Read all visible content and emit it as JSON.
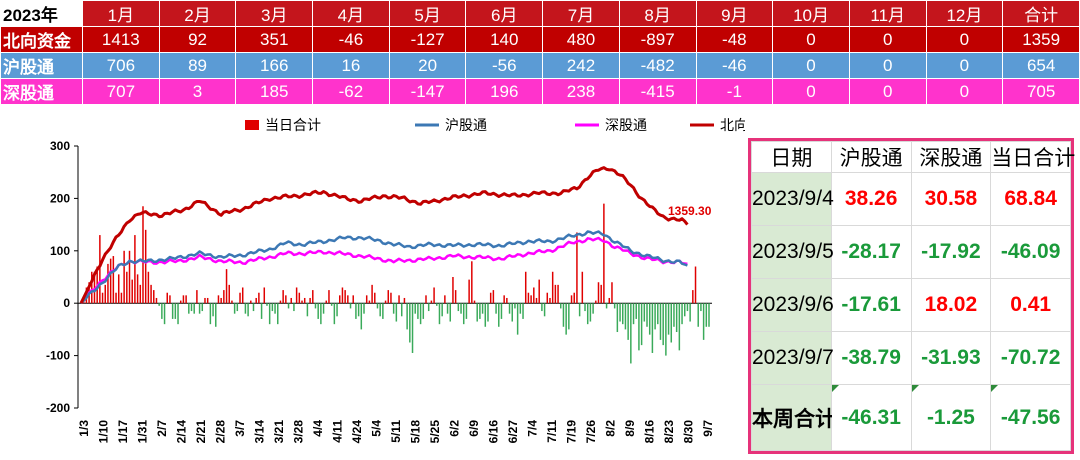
{
  "monthly_table": {
    "year_label": "2023年",
    "months": [
      "1月",
      "2月",
      "3月",
      "4月",
      "5月",
      "6月",
      "7月",
      "8月",
      "9月",
      "10月",
      "11月",
      "12月",
      "合计"
    ],
    "rows": [
      {
        "label": "北向资金",
        "class": "row-north",
        "values": [
          "1413",
          "92",
          "351",
          "-46",
          "-127",
          "140",
          "480",
          "-897",
          "-48",
          "0",
          "0",
          "0",
          "1359"
        ]
      },
      {
        "label": "沪股通",
        "class": "row-sh",
        "values": [
          "706",
          "89",
          "166",
          "16",
          "20",
          "-56",
          "242",
          "-482",
          "-46",
          "0",
          "0",
          "0",
          "654"
        ]
      },
      {
        "label": "深股通",
        "class": "row-sz",
        "values": [
          "707",
          "3",
          "185",
          "-62",
          "-147",
          "196",
          "238",
          "-415",
          "-1",
          "0",
          "0",
          "0",
          "705"
        ]
      }
    ]
  },
  "colors": {
    "north": "#c00000",
    "sh": "#3c78b4",
    "sz": "#ff00ff",
    "bar_pos": "#e00000",
    "bar_neg": "#3aaa5a",
    "positive_text": "#ff0000",
    "negative_text": "#1a9a3a"
  },
  "chart_data": {
    "type": "bar+line",
    "legend": [
      "当日合计",
      "沪股通",
      "深股通",
      "北向资金"
    ],
    "legend_placement": "top",
    "ylim": [
      -200,
      300
    ],
    "yticks": [
      "300",
      "200",
      "100",
      "0",
      "-100",
      "-200"
    ],
    "x_tick_labels": [
      "1/3",
      "1/10",
      "1/17",
      "1/31",
      "2/7",
      "2/14",
      "2/21",
      "2/28",
      "3/7",
      "3/14",
      "3/21",
      "3/28",
      "4/4",
      "4/11",
      "4/24",
      "5/4",
      "5/11",
      "5/18",
      "5/25",
      "6/2",
      "6/9",
      "6/16",
      "6/27",
      "7/4",
      "7/11",
      "7/19",
      "7/26",
      "8/2",
      "8/9",
      "8/16",
      "8/23",
      "8/30",
      "9/7"
    ],
    "annotation": "1359.30",
    "series": [
      {
        "name": "北向资金",
        "key": "north",
        "anchors": [
          [
            0,
            0
          ],
          [
            8,
            85
          ],
          [
            14,
            130
          ],
          [
            18,
            160
          ],
          [
            22,
            172
          ],
          [
            30,
            168
          ],
          [
            38,
            178
          ],
          [
            44,
            195
          ],
          [
            52,
            170
          ],
          [
            60,
            180
          ],
          [
            70,
            200
          ],
          [
            80,
            205
          ],
          [
            90,
            212
          ],
          [
            98,
            200
          ],
          [
            104,
            195
          ],
          [
            112,
            205
          ],
          [
            120,
            200
          ],
          [
            126,
            190
          ],
          [
            134,
            198
          ],
          [
            142,
            205
          ],
          [
            150,
            210
          ],
          [
            160,
            205
          ],
          [
            170,
            210
          ],
          [
            178,
            210
          ],
          [
            184,
            220
          ],
          [
            188,
            240
          ],
          [
            192,
            255
          ],
          [
            196,
            258
          ],
          [
            200,
            245
          ],
          [
            204,
            225
          ],
          [
            208,
            200
          ],
          [
            212,
            180
          ],
          [
            216,
            165
          ],
          [
            220,
            160
          ],
          [
            223,
            158
          ],
          [
            225,
            150
          ]
        ]
      },
      {
        "name": "沪股通",
        "key": "sh",
        "anchors": [
          [
            0,
            0
          ],
          [
            8,
            40
          ],
          [
            14,
            70
          ],
          [
            18,
            80
          ],
          [
            24,
            80
          ],
          [
            34,
            85
          ],
          [
            44,
            95
          ],
          [
            52,
            88
          ],
          [
            60,
            92
          ],
          [
            70,
            103
          ],
          [
            76,
            115
          ],
          [
            82,
            112
          ],
          [
            90,
            118
          ],
          [
            98,
            125
          ],
          [
            104,
            125
          ],
          [
            110,
            120
          ],
          [
            116,
            112
          ],
          [
            122,
            108
          ],
          [
            130,
            112
          ],
          [
            138,
            110
          ],
          [
            146,
            112
          ],
          [
            156,
            110
          ],
          [
            166,
            118
          ],
          [
            174,
            118
          ],
          [
            182,
            128
          ],
          [
            188,
            135
          ],
          [
            194,
            132
          ],
          [
            198,
            118
          ],
          [
            204,
            100
          ],
          [
            210,
            90
          ],
          [
            216,
            82
          ],
          [
            222,
            78
          ],
          [
            225,
            72
          ]
        ]
      },
      {
        "name": "深股通",
        "key": "sz",
        "anchors": [
          [
            0,
            0
          ],
          [
            8,
            45
          ],
          [
            14,
            70
          ],
          [
            18,
            80
          ],
          [
            26,
            78
          ],
          [
            36,
            80
          ],
          [
            44,
            88
          ],
          [
            52,
            80
          ],
          [
            60,
            78
          ],
          [
            70,
            88
          ],
          [
            76,
            95
          ],
          [
            84,
            95
          ],
          [
            90,
            98
          ],
          [
            96,
            95
          ],
          [
            104,
            90
          ],
          [
            110,
            85
          ],
          [
            116,
            80
          ],
          [
            122,
            82
          ],
          [
            130,
            85
          ],
          [
            138,
            90
          ],
          [
            146,
            88
          ],
          [
            156,
            85
          ],
          [
            166,
            95
          ],
          [
            174,
            100
          ],
          [
            182,
            115
          ],
          [
            188,
            122
          ],
          [
            194,
            120
          ],
          [
            198,
            108
          ],
          [
            204,
            95
          ],
          [
            210,
            85
          ],
          [
            216,
            80
          ],
          [
            222,
            78
          ],
          [
            225,
            75
          ]
        ]
      }
    ],
    "daily_bars": [
      0,
      5,
      30,
      40,
      60,
      60,
      70,
      130,
      20,
      35,
      75,
      85,
      90,
      20,
      55,
      20,
      100,
      60,
      100,
      45,
      130,
      55,
      35,
      185,
      140,
      60,
      35,
      25,
      10,
      -5,
      -30,
      -40,
      20,
      15,
      -30,
      -30,
      -40,
      5,
      15,
      15,
      -20,
      -15,
      -20,
      25,
      -20,
      -15,
      10,
      10,
      -40,
      -25,
      -45,
      15,
      10,
      25,
      65,
      35,
      5,
      -20,
      -15,
      20,
      30,
      -20,
      -25,
      5,
      -15,
      10,
      20,
      -30,
      30,
      -5,
      -40,
      -15,
      -20,
      -40,
      5,
      25,
      15,
      -10,
      10,
      -15,
      30,
      20,
      5,
      10,
      -25,
      10,
      25,
      -10,
      -30,
      -40,
      -20,
      5,
      25,
      -5,
      -40,
      -25,
      15,
      30,
      25,
      15,
      -10,
      15,
      -30,
      -25,
      -50,
      -20,
      15,
      5,
      35,
      20,
      -10,
      -25,
      -30,
      5,
      25,
      20,
      -20,
      -35,
      15,
      -25,
      10,
      -50,
      -75,
      -95,
      -20,
      -30,
      -40,
      -30,
      15,
      -15,
      5,
      30,
      -5,
      -40,
      -25,
      15,
      -20,
      -35,
      50,
      25,
      -15,
      -20,
      -40,
      -30,
      45,
      80,
      5,
      -35,
      -30,
      -20,
      -45,
      -35,
      20,
      25,
      -20,
      -45,
      -30,
      15,
      10,
      -20,
      -35,
      -10,
      -60,
      -20,
      -30,
      60,
      20,
      15,
      30,
      10,
      45,
      -15,
      -25,
      20,
      10,
      60,
      35,
      35,
      -10,
      -45,
      -60,
      -50,
      15,
      20,
      135,
      -25,
      60,
      -15,
      -40,
      -35,
      -20,
      5,
      40,
      35,
      190,
      -10,
      10,
      40,
      -10,
      -55,
      -35,
      -40,
      -50,
      -70,
      -115,
      -40,
      -30,
      -90,
      -80,
      -35,
      -45,
      -60,
      -95,
      -50,
      -40,
      -70,
      -80,
      -100,
      -60,
      -75,
      -45,
      -55,
      -90,
      -40,
      -25,
      -15,
      -35,
      25,
      70,
      -45,
      -15,
      -70,
      -45,
      -45
    ]
  },
  "weekly_table": {
    "headers": [
      "日期",
      "沪股通",
      "深股通",
      "当日合计"
    ],
    "rows": [
      {
        "date": "2023/9/4",
        "values": [
          "38.26",
          "30.58",
          "68.84"
        ],
        "signs": [
          "pos",
          "pos",
          "pos"
        ]
      },
      {
        "date": "2023/9/5",
        "values": [
          "-28.17",
          "-17.92",
          "-46.09"
        ],
        "signs": [
          "neg",
          "neg",
          "neg"
        ]
      },
      {
        "date": "2023/9/6",
        "values": [
          "-17.61",
          "18.02",
          "0.41"
        ],
        "signs": [
          "neg",
          "pos",
          "pos"
        ]
      },
      {
        "date": "2023/9/7",
        "values": [
          "-38.79",
          "-31.93",
          "-70.72"
        ],
        "signs": [
          "neg",
          "neg",
          "neg"
        ]
      },
      {
        "date": "本周合计",
        "values": [
          "-46.31",
          "-1.25",
          "-47.56"
        ],
        "signs": [
          "neg",
          "neg",
          "neg"
        ],
        "total": true
      }
    ]
  }
}
